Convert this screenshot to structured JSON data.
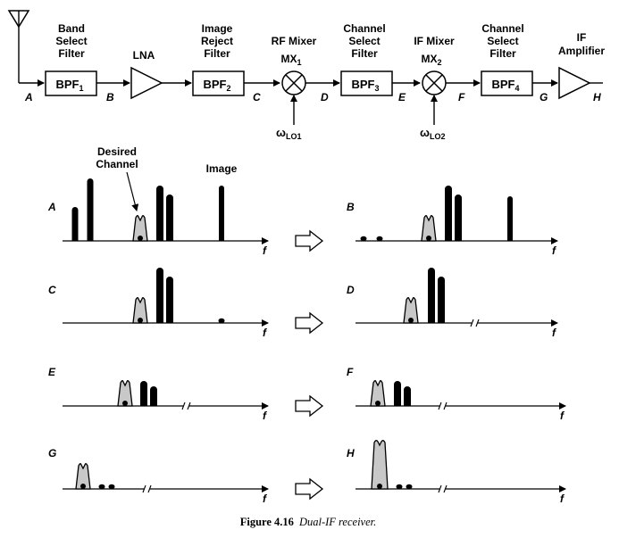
{
  "chain": {
    "blocks": {
      "band_select": [
        "Band",
        "Select",
        "Filter"
      ],
      "lna": "LNA",
      "image_reject": [
        "Image",
        "Reject",
        "Filter"
      ],
      "rf_mixer": [
        "RF Mixer",
        "MX"
      ],
      "rf_mixer_sub": "1",
      "channel_select_1": [
        "Channel",
        "Select",
        "Filter"
      ],
      "if_mixer": [
        "IF Mixer",
        "MX"
      ],
      "if_mixer_sub": "2",
      "channel_select_2": [
        "Channel",
        "Select",
        "Filter"
      ],
      "if_amp": [
        "IF",
        "Amplifier"
      ]
    },
    "boxes": {
      "bpf": "BPF",
      "sub1": "1",
      "sub2": "2",
      "sub3": "3",
      "sub4": "4"
    },
    "lo": {
      "omega": "ω",
      "lo1": "LO1",
      "lo2": "LO2"
    },
    "nodes": [
      "A",
      "B",
      "C",
      "D",
      "E",
      "F",
      "G",
      "H"
    ]
  },
  "spectra": {
    "axis_label": "f",
    "desired_channel": [
      "Desired",
      "Channel"
    ],
    "image": "Image"
  },
  "caption": {
    "number": "Figure 4.16",
    "title": "Dual-IF receiver."
  }
}
